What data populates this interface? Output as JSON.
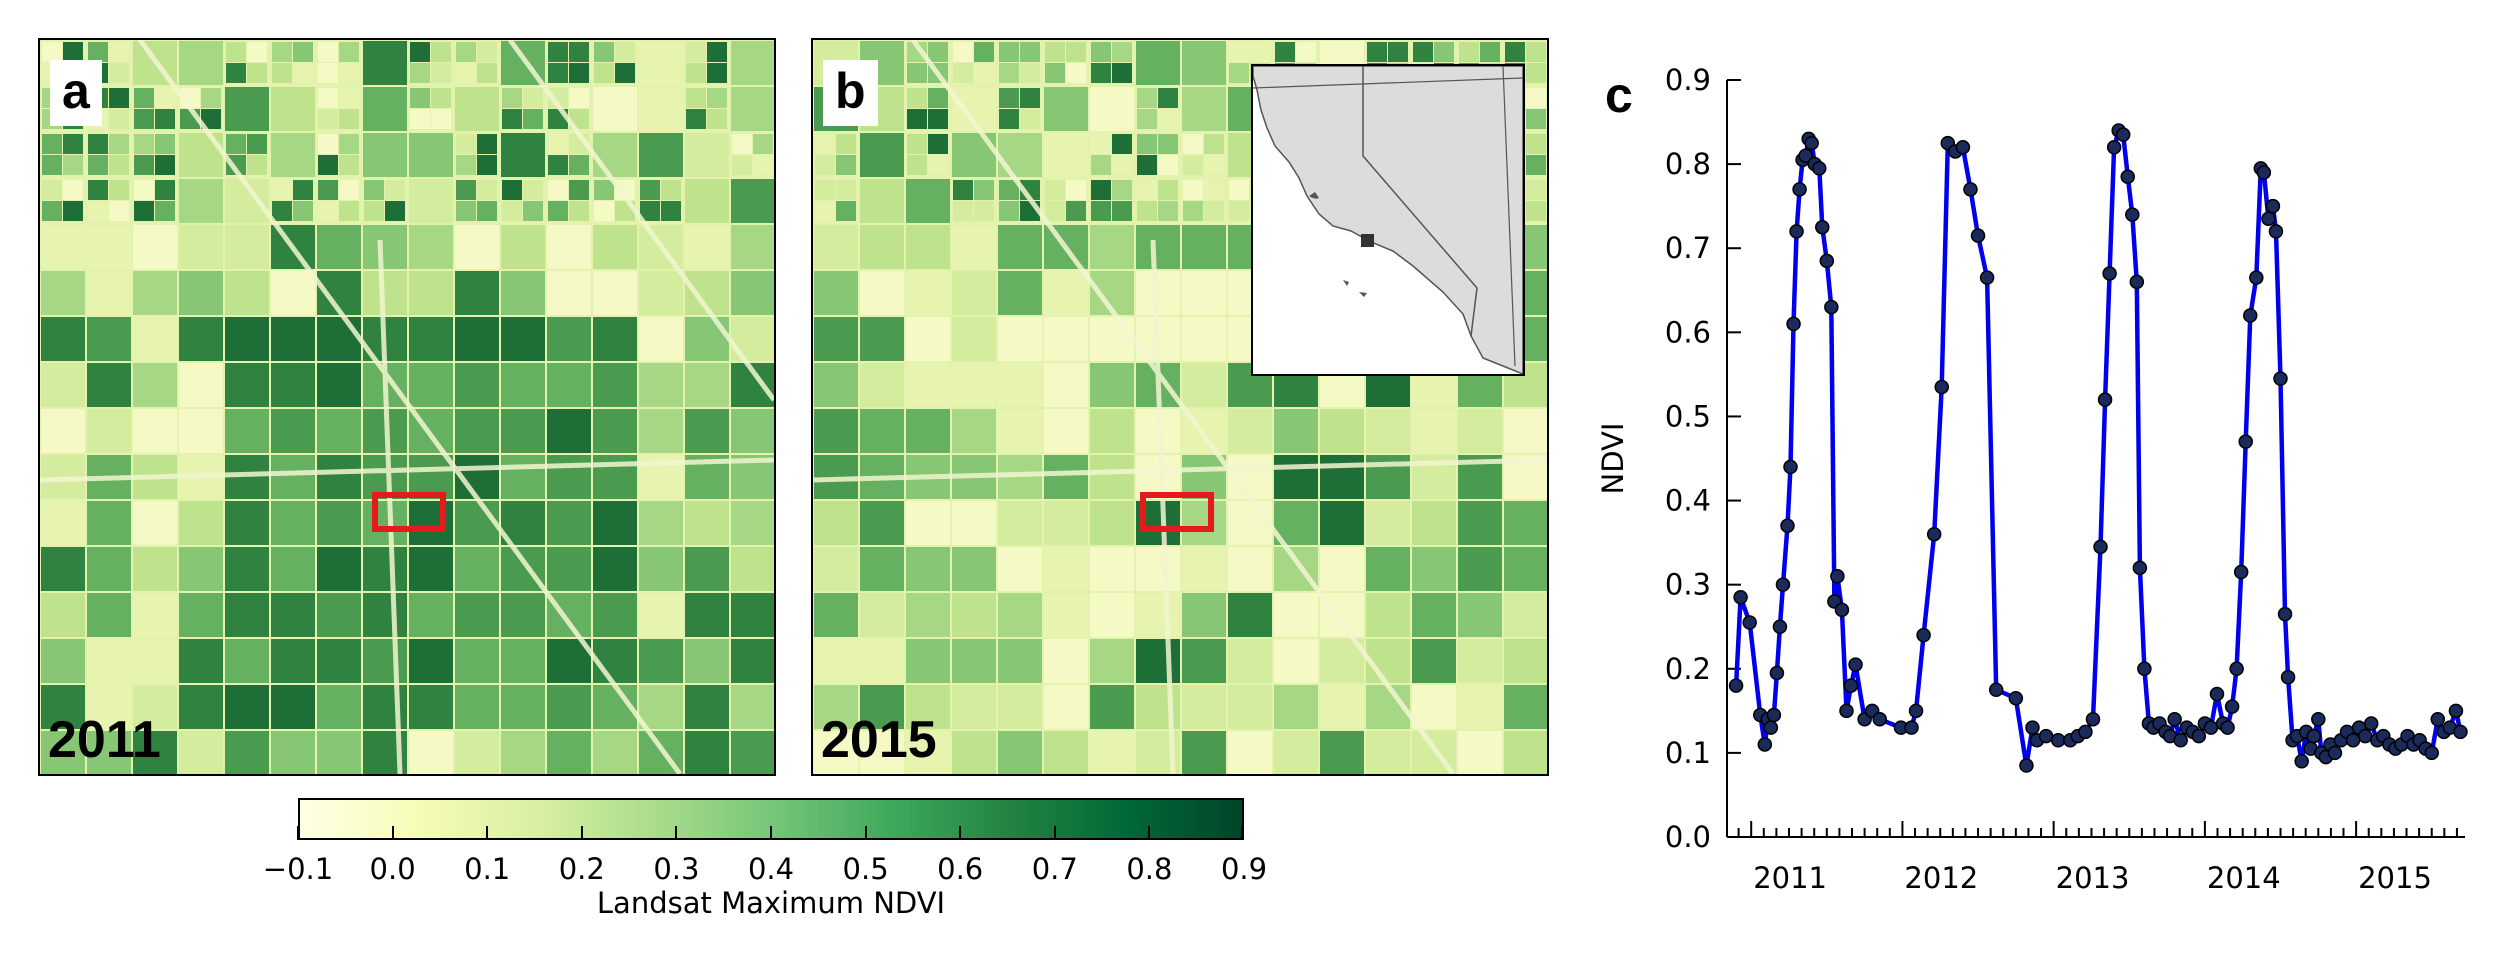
{
  "panels": {
    "a": {
      "letter": "a",
      "year": "2011"
    },
    "b": {
      "letter": "b",
      "year": "2015"
    },
    "c": {
      "letter": "c"
    }
  },
  "colors": {
    "ndvi_low": "#ffffe5",
    "ndvi_high": "#004529",
    "roi_box": "#e41a1c",
    "series_line": "#0000ee",
    "series_marker": "#1a2a5a",
    "inset_land": "#dcdcdc"
  },
  "colorbar": {
    "title": "Landsat Maximum NDVI",
    "ticks": [
      "−0.1",
      "0.0",
      "0.1",
      "0.2",
      "0.3",
      "0.4",
      "0.5",
      "0.6",
      "0.7",
      "0.8",
      "0.9"
    ],
    "range": [
      -0.1,
      0.9
    ]
  },
  "chart_data": {
    "type": "line",
    "title": "",
    "xlabel": "",
    "ylabel": "NDVI",
    "ylim": [
      0.0,
      0.9
    ],
    "yticks": [
      "0.0",
      "0.1",
      "0.2",
      "0.3",
      "0.4",
      "0.5",
      "0.6",
      "0.7",
      "0.8",
      "0.9"
    ],
    "xlim": [
      2010.84,
      2015.72
    ],
    "xtick_labels": [
      {
        "x": 2011.0,
        "label": "2011"
      },
      {
        "x": 2012.0,
        "label": "2012"
      },
      {
        "x": 2013.0,
        "label": "2013"
      },
      {
        "x": 2014.0,
        "label": "2014"
      },
      {
        "x": 2015.0,
        "label": "2015"
      }
    ],
    "grid": false,
    "series": [
      {
        "x": [
          2010.9,
          2010.93,
          2010.99,
          2011.06,
          2011.09,
          2011.11,
          2011.13,
          2011.15,
          2011.17,
          2011.19,
          2011.21,
          2011.24,
          2011.26,
          2011.28,
          2011.3,
          2011.32,
          2011.34,
          2011.36,
          2011.38,
          2011.4,
          2011.42,
          2011.45,
          2011.47,
          2011.5,
          2011.53,
          2011.55,
          2011.57,
          2011.6,
          2011.63,
          2011.66,
          2011.69,
          2011.75,
          2011.8,
          2011.85,
          2011.99,
          2012.06,
          2012.09,
          2012.14,
          2012.21,
          2012.26,
          2012.3,
          2012.35,
          2012.4,
          2012.45,
          2012.5,
          2012.56,
          2012.62,
          2012.75,
          2012.82,
          2012.86,
          2012.89,
          2012.95,
          2013.03,
          2013.11,
          2013.16,
          2013.21,
          2013.26,
          2013.31,
          2013.34,
          2013.37,
          2013.4,
          2013.43,
          2013.46,
          2013.49,
          2013.52,
          2013.55,
          2013.57,
          2013.6,
          2013.63,
          2013.66,
          2013.7,
          2013.74,
          2013.77,
          2013.8,
          2013.84,
          2013.88,
          2013.92,
          2013.96,
          2014.0,
          2014.04,
          2014.08,
          2014.12,
          2014.15,
          2014.18,
          2014.21,
          2014.24,
          2014.27,
          2014.3,
          2014.34,
          2014.37,
          2014.39,
          2014.42,
          2014.45,
          2014.47,
          2014.5,
          2014.53,
          2014.55,
          2014.58,
          2014.61,
          2014.64,
          2014.67,
          2014.7,
          2014.72,
          2014.75,
          2014.77,
          2014.8,
          2014.83,
          2014.86,
          2014.9,
          2014.94,
          2014.98,
          2015.02,
          2015.06,
          2015.1,
          2015.14,
          2015.18,
          2015.22,
          2015.26,
          2015.3,
          2015.34,
          2015.38,
          2015.42,
          2015.46,
          2015.5,
          2015.54,
          2015.58,
          2015.62,
          2015.66,
          2015.69
        ],
        "y": [
          0.18,
          0.285,
          0.255,
          0.145,
          0.11,
          0.14,
          0.13,
          0.145,
          0.195,
          0.25,
          0.3,
          0.37,
          0.44,
          0.61,
          0.72,
          0.77,
          0.805,
          0.81,
          0.83,
          0.825,
          0.8,
          0.795,
          0.725,
          0.685,
          0.63,
          0.28,
          0.31,
          0.27,
          0.15,
          0.18,
          0.205,
          0.14,
          0.15,
          0.14,
          0.13,
          0.13,
          0.15,
          0.24,
          0.36,
          0.535,
          0.825,
          0.815,
          0.82,
          0.77,
          0.715,
          0.665,
          0.175,
          0.165,
          0.085,
          0.13,
          0.115,
          0.12,
          0.115,
          0.115,
          0.12,
          0.125,
          0.14,
          0.345,
          0.52,
          0.67,
          0.82,
          0.84,
          0.835,
          0.785,
          0.74,
          0.66,
          0.32,
          0.2,
          0.135,
          0.13,
          0.135,
          0.125,
          0.12,
          0.14,
          0.115,
          0.13,
          0.125,
          0.12,
          0.135,
          0.13,
          0.17,
          0.135,
          0.13,
          0.155,
          0.2,
          0.315,
          0.47,
          0.62,
          0.665,
          0.795,
          0.79,
          0.735,
          0.75,
          0.72,
          0.545,
          0.265,
          0.19,
          0.115,
          0.12,
          0.09,
          0.125,
          0.105,
          0.12,
          0.14,
          0.1,
          0.095,
          0.11,
          0.1,
          0.115,
          0.125,
          0.115,
          0.13,
          0.12,
          0.135,
          0.115,
          0.12,
          0.11,
          0.105,
          0.11,
          0.12,
          0.11,
          0.115,
          0.105,
          0.1,
          0.14,
          0.125,
          0.13,
          0.15,
          0.125
        ]
      }
    ]
  }
}
